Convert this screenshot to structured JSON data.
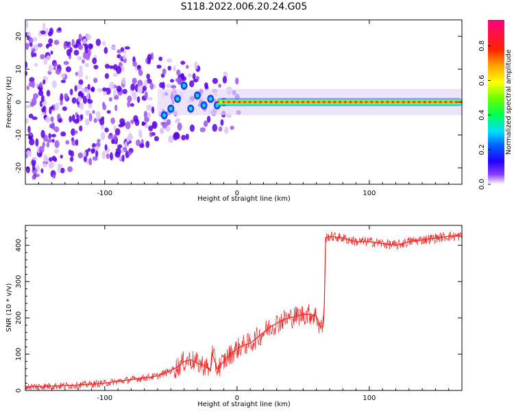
{
  "title": "S118.2022.006.20.24.G05",
  "colors": {
    "snr_line": "#ee2222",
    "axis": "#000000"
  },
  "chart_data": [
    {
      "type": "heatmap",
      "xlabel": "Height of straight line (km)",
      "ylabel": "Frequency (Hz)",
      "xlim": [
        -160,
        170
      ],
      "ylim": [
        -25,
        25
      ],
      "xticks": [
        -100,
        0,
        100
      ],
      "yticks": [
        -20,
        -10,
        0,
        10,
        20
      ],
      "xtick_labels": [
        "-100",
        "0",
        "100"
      ],
      "ytick_labels": [
        "-20",
        "-10",
        "0",
        "10",
        "20"
      ],
      "grid": false,
      "colorbar": {
        "label": "Normalized spectral amplitude",
        "range": [
          0,
          1
        ],
        "ticks": [
          0.0,
          0.2,
          0.4,
          0.6,
          0.8
        ],
        "tick_labels": [
          "0.0",
          "0.2",
          "0.4",
          "0.6",
          "0.8"
        ],
        "colormap": [
          "#ffffff",
          "#6a00ff",
          "#0000ff",
          "#00e5ff",
          "#00ff00",
          "#ffff00",
          "#ff8800",
          "#ff0000",
          "#ff0080"
        ]
      },
      "features": {
        "noise_region_x": [
          -160,
          -60
        ],
        "noise_spread_hz": 25,
        "transition_x": [
          -60,
          -15
        ],
        "signal_line_x": [
          -15,
          170
        ],
        "signal_freq_hz": 0,
        "signal_amplitude": 0.85,
        "wiggle_points": [
          {
            "x": -55,
            "y": -4
          },
          {
            "x": -50,
            "y": -2
          },
          {
            "x": -45,
            "y": 1
          },
          {
            "x": -40,
            "y": 5
          },
          {
            "x": -35,
            "y": -2
          },
          {
            "x": -30,
            "y": 2
          },
          {
            "x": -25,
            "y": -1
          },
          {
            "x": -20,
            "y": 1
          },
          {
            "x": -15,
            "y": -1
          },
          {
            "x": -10,
            "y": 0
          }
        ]
      }
    },
    {
      "type": "line",
      "xlabel": "Height of straight line (km)",
      "ylabel": "SNR (10 * v/v)",
      "xlim": [
        -160,
        170
      ],
      "ylim": [
        0,
        455
      ],
      "xticks": [
        -100,
        0,
        100
      ],
      "yticks": [
        0,
        100,
        200,
        300,
        400
      ],
      "xtick_labels": [
        "-100",
        "0",
        "100"
      ],
      "ytick_labels": [
        "0",
        "100",
        "200",
        "300",
        "400"
      ],
      "grid": false,
      "series": [
        {
          "x": [
            -160,
            -140,
            -120,
            -100,
            -90,
            -80,
            -70,
            -60,
            -50,
            -45,
            -40,
            -35,
            -30,
            -25,
            -20,
            -19,
            -15,
            -10,
            -5,
            0,
            5,
            10,
            15,
            20,
            25,
            30,
            35,
            40,
            45,
            50,
            55,
            60,
            62,
            64,
            65,
            66,
            67,
            70,
            80,
            90,
            100,
            110,
            120,
            130,
            140,
            150,
            160,
            170
          ],
          "y": [
            10,
            12,
            15,
            20,
            25,
            30,
            35,
            40,
            55,
            65,
            80,
            85,
            75,
            70,
            55,
            105,
            60,
            80,
            100,
            115,
            125,
            130,
            145,
            160,
            175,
            185,
            195,
            200,
            205,
            210,
            210,
            205,
            180,
            175,
            175,
            240,
            420,
            425,
            420,
            410,
            410,
            405,
            400,
            410,
            415,
            420,
            425,
            425
          ]
        }
      ]
    }
  ]
}
